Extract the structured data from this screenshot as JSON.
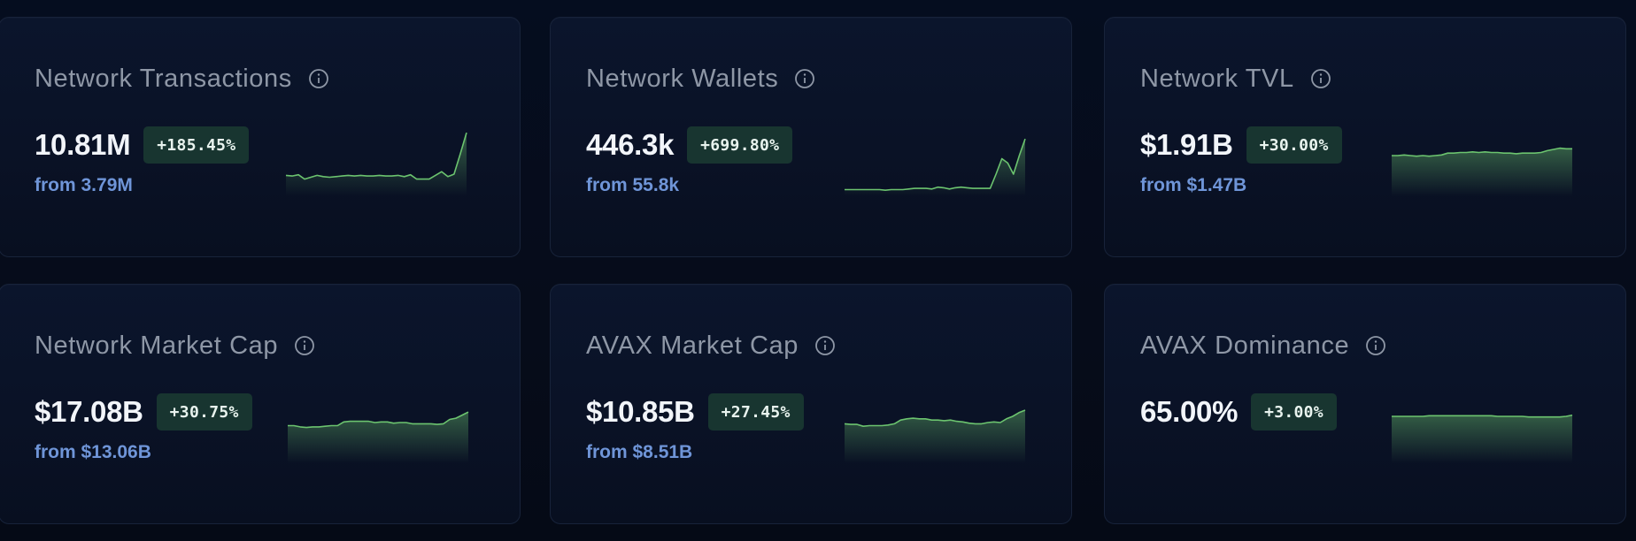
{
  "cards": [
    {
      "title": "Network Transactions",
      "info_icon": "info-circle-icon",
      "value": "10.81M",
      "change": "+185.45%",
      "from": "from 3.79M",
      "trend": [
        0.28,
        0.27,
        0.29,
        0.22,
        0.25,
        0.28,
        0.26,
        0.25,
        0.26,
        0.27,
        0.28,
        0.27,
        0.28,
        0.27,
        0.27,
        0.28,
        0.27,
        0.27,
        0.28,
        0.26,
        0.29,
        0.22,
        0.22,
        0.22,
        0.28,
        0.34,
        0.26,
        0.3,
        0.63,
        0.97
      ]
    },
    {
      "title": "Network Wallets",
      "info_icon": "info-circle-icon",
      "value": "446.3k",
      "change": "+699.80%",
      "from": "from 55.8k",
      "trend": [
        0.05,
        0.05,
        0.05,
        0.05,
        0.05,
        0.05,
        0.05,
        0.04,
        0.05,
        0.05,
        0.05,
        0.06,
        0.07,
        0.07,
        0.07,
        0.06,
        0.09,
        0.08,
        0.06,
        0.08,
        0.09,
        0.08,
        0.07,
        0.07,
        0.07,
        0.07,
        0.3,
        0.55,
        0.48,
        0.3,
        0.6,
        0.87
      ]
    },
    {
      "title": "Network TVL",
      "info_icon": "info-circle-icon",
      "value": "$1.91B",
      "change": "+30.00%",
      "from": "from $1.47B",
      "trend": [
        0.6,
        0.6,
        0.61,
        0.6,
        0.59,
        0.6,
        0.59,
        0.6,
        0.61,
        0.64,
        0.64,
        0.65,
        0.65,
        0.66,
        0.65,
        0.66,
        0.65,
        0.65,
        0.64,
        0.64,
        0.63,
        0.64,
        0.64,
        0.64,
        0.65,
        0.68,
        0.7,
        0.72,
        0.71,
        0.71
      ]
    },
    {
      "title": "Network Market Cap",
      "info_icon": "info-circle-icon",
      "value": "$17.08B",
      "change": "+30.75%",
      "from": "from $13.06B",
      "trend": [
        0.55,
        0.55,
        0.53,
        0.52,
        0.53,
        0.53,
        0.54,
        0.55,
        0.55,
        0.61,
        0.62,
        0.62,
        0.62,
        0.62,
        0.6,
        0.61,
        0.61,
        0.59,
        0.6,
        0.6,
        0.58,
        0.58,
        0.58,
        0.58,
        0.57,
        0.58,
        0.65,
        0.67,
        0.72,
        0.77
      ]
    },
    {
      "title": "AVAX Market Cap",
      "info_icon": "info-circle-icon",
      "value": "$10.85B",
      "change": "+27.45%",
      "from": "from $8.51B",
      "trend": [
        0.58,
        0.57,
        0.57,
        0.54,
        0.55,
        0.55,
        0.55,
        0.56,
        0.58,
        0.64,
        0.66,
        0.67,
        0.66,
        0.66,
        0.64,
        0.64,
        0.63,
        0.64,
        0.62,
        0.61,
        0.59,
        0.58,
        0.58,
        0.6,
        0.61,
        0.6,
        0.66,
        0.7,
        0.76,
        0.8
      ]
    },
    {
      "title": "AVAX Dominance",
      "info_icon": "info-circle-icon",
      "value": "65.00%",
      "change": "+3.00%",
      "from": "",
      "trend": [
        0.7,
        0.7,
        0.7,
        0.7,
        0.7,
        0.7,
        0.71,
        0.71,
        0.71,
        0.71,
        0.71,
        0.71,
        0.71,
        0.71,
        0.71,
        0.71,
        0.71,
        0.7,
        0.7,
        0.7,
        0.7,
        0.7,
        0.69,
        0.69,
        0.69,
        0.69,
        0.69,
        0.69,
        0.7,
        0.72
      ]
    }
  ],
  "colors": {
    "line": "#6cc46f",
    "badge_bg": "#183530",
    "from_text": "#6f95d8"
  }
}
